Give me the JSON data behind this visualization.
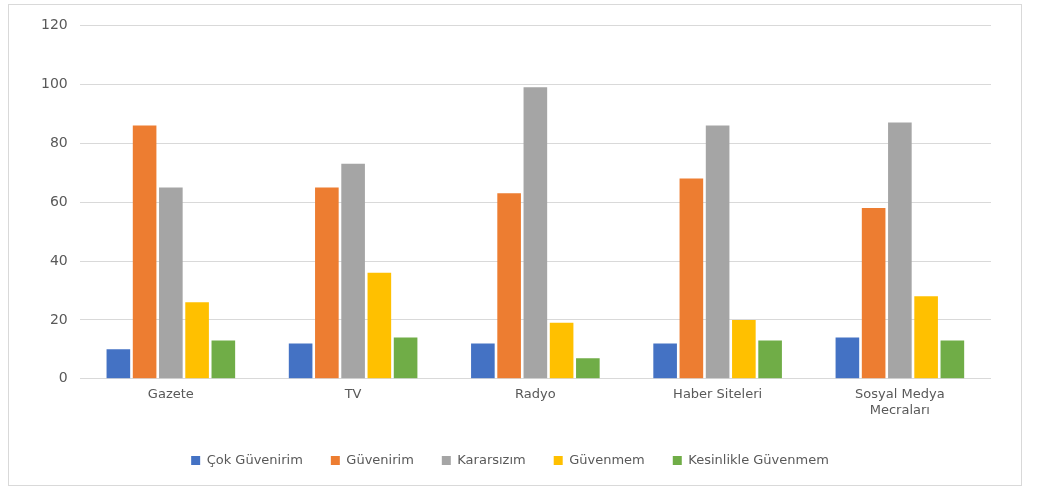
{
  "chart_data": {
    "type": "bar",
    "categories": [
      "Gazete",
      "TV",
      "Radyo",
      "Haber Siteleri",
      "Sosyal Medya Mecraları"
    ],
    "series": [
      {
        "name": "Çok Güvenirim",
        "color": "#4472c4",
        "values": [
          10,
          12,
          12,
          12,
          14
        ]
      },
      {
        "name": "Güvenirim",
        "color": "#ed7d31",
        "values": [
          86,
          65,
          63,
          68,
          58
        ]
      },
      {
        "name": "Kararsızım",
        "color": "#a5a5a5",
        "values": [
          65,
          73,
          99,
          86,
          87
        ]
      },
      {
        "name": "Güvenmem",
        "color": "#ffc000",
        "values": [
          26,
          36,
          19,
          20,
          28
        ]
      },
      {
        "name": "Kesinlikle Güvenmem",
        "color": "#70ad47",
        "values": [
          13,
          14,
          7,
          13,
          13
        ]
      }
    ],
    "ylim": [
      0,
      120
    ],
    "yticks": [
      0,
      20,
      40,
      60,
      80,
      100,
      120
    ],
    "grid": "y",
    "legend": "bottom"
  }
}
